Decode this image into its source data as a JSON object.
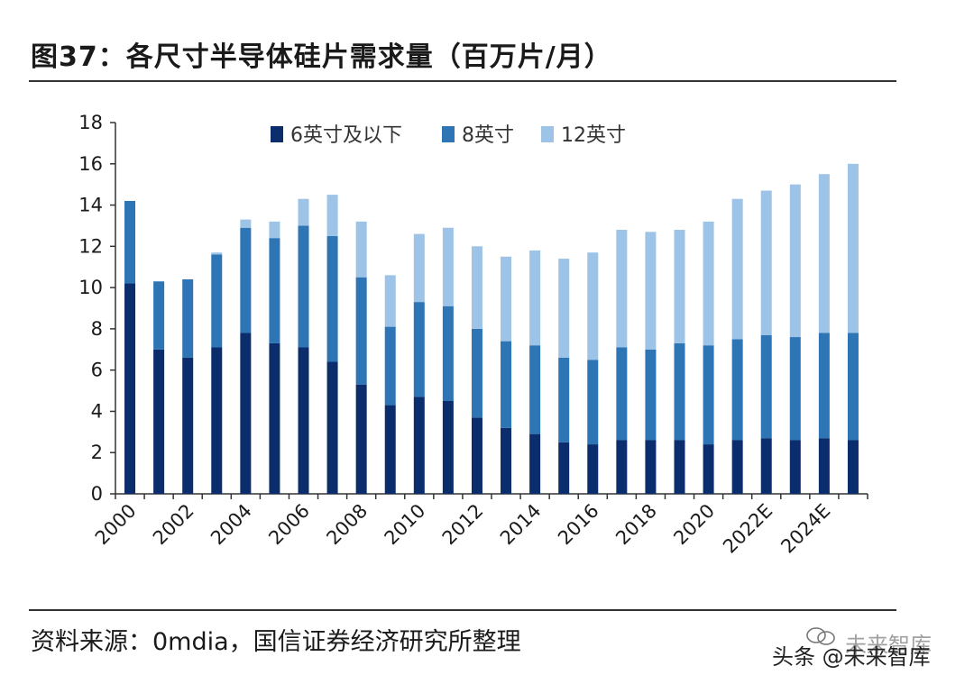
{
  "title": "图37：各尺寸半导体硅片需求量（百万片/月）",
  "source": "资料来源：0mdia，国信证券经济研究所整理",
  "watermark": {
    "text": "头条 @未来智库",
    "logo_text": "未来智库"
  },
  "colors": {
    "s6": "#0b2d6b",
    "s8": "#2e75b6",
    "s12": "#9dc3e6"
  },
  "chart_data": {
    "type": "bar",
    "stacked": true,
    "categories": [
      "2000",
      "2001",
      "2002",
      "2003",
      "2004",
      "2005",
      "2006",
      "2007",
      "2008",
      "2009",
      "2010",
      "2011",
      "2012",
      "2013",
      "2014",
      "2015",
      "2016",
      "2017",
      "2018",
      "2019",
      "2020",
      "2021",
      "2022E",
      "2023E",
      "2024E",
      "2025E"
    ],
    "x_tick_labels": [
      "2000",
      "2002",
      "2004",
      "2006",
      "2008",
      "2010",
      "2012",
      "2014",
      "2016",
      "2018",
      "2020",
      "2022E",
      "2024E"
    ],
    "ylim": [
      0,
      18
    ],
    "yticks": [
      0,
      2,
      4,
      6,
      8,
      10,
      12,
      14,
      16,
      18
    ],
    "legend_position": "top",
    "series": [
      {
        "name": "6英寸及以下",
        "values": [
          10.2,
          7.0,
          6.6,
          7.1,
          7.8,
          7.3,
          7.1,
          6.4,
          5.3,
          4.3,
          4.7,
          4.5,
          3.7,
          3.2,
          2.9,
          2.5,
          2.4,
          2.6,
          2.6,
          2.6,
          2.4,
          2.6,
          2.7,
          2.6,
          2.7,
          2.6
        ]
      },
      {
        "name": "8英寸",
        "values": [
          4.0,
          3.3,
          3.8,
          4.5,
          5.1,
          5.1,
          5.9,
          6.1,
          5.2,
          3.8,
          4.6,
          4.6,
          4.3,
          4.2,
          4.3,
          4.1,
          4.1,
          4.5,
          4.4,
          4.7,
          4.8,
          4.9,
          5.0,
          5.0,
          5.1,
          5.2
        ]
      },
      {
        "name": "12英寸",
        "values": [
          0.0,
          0.0,
          0.0,
          0.1,
          0.4,
          0.8,
          1.3,
          2.0,
          2.7,
          2.5,
          3.3,
          3.8,
          4.0,
          4.1,
          4.6,
          4.8,
          5.2,
          5.7,
          5.7,
          5.5,
          6.0,
          6.8,
          7.0,
          7.4,
          7.7,
          8.2
        ]
      }
    ]
  }
}
